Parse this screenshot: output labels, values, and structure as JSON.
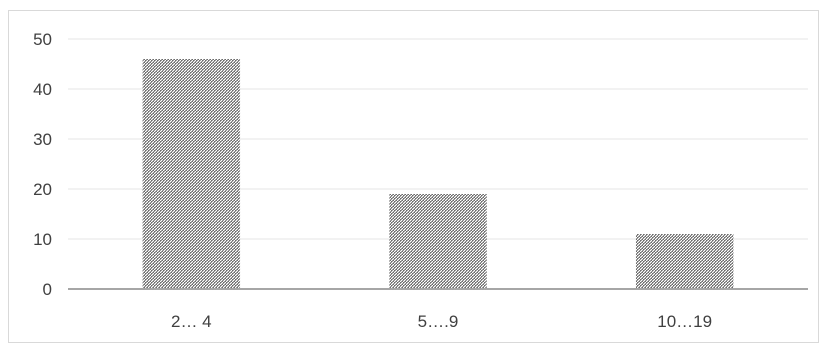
{
  "chart_data": {
    "type": "bar",
    "categories": [
      "2… 4",
      "5….9",
      "10…19"
    ],
    "values": [
      46,
      19,
      11
    ],
    "title": "",
    "xlabel": "",
    "ylabel": "",
    "ylim": [
      0,
      50
    ],
    "yticks": [
      "0",
      "10",
      "20",
      "30",
      "40",
      "50"
    ],
    "grid": true,
    "legend": "none",
    "colors": {
      "bar_pattern_light": "#ffffff",
      "bar_pattern_dark": "#6b6b6b",
      "bar_base": "#9a9a9a",
      "gridline": "#e6e6e6",
      "axis": "#a6a6a6",
      "frame": "#d9d9d9",
      "text": "#404040"
    }
  }
}
